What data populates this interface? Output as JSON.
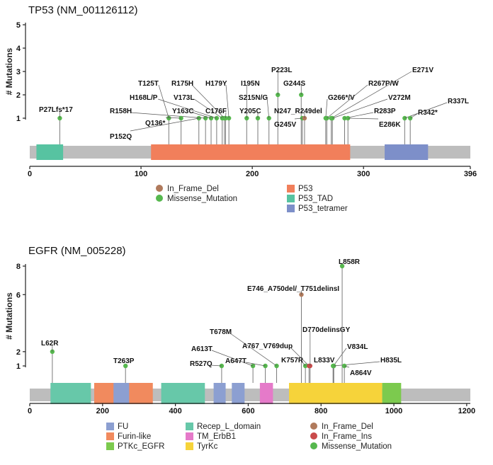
{
  "colors": {
    "backbone": "#bdbdbd",
    "stem": "#7a7a7a",
    "axis": "#222222",
    "Missense_Mutation": "#56b84e",
    "In_Frame_Del": "#b07a5c",
    "In_Frame_Ins": "#c94b4b",
    "P53": "#f17f5b",
    "P53_TAD": "#57c3a1",
    "P53_tetramer": "#7d8fc9",
    "FU": "#8c9fd1",
    "Furin-like": "#f18a5e",
    "Recep_L_domain": "#67c8a9",
    "PTKc_EGFR": "#7cca4e",
    "TM_ErbB1": "#e57ac9",
    "TyrKc": "#f6d33a"
  },
  "chart_data": [
    {
      "type": "lollipop",
      "title": "TP53 (NM_001126112)",
      "ylabel": "# Mutations",
      "protein_length": 396,
      "ylim": [
        0,
        5
      ],
      "yticks": [
        1,
        2,
        3,
        4,
        5
      ],
      "xticks": [
        0,
        100,
        200,
        300,
        396
      ],
      "domains": [
        {
          "name": "P53_TAD",
          "start": 6,
          "end": 30
        },
        {
          "name": "P53",
          "start": 109,
          "end": 288
        },
        {
          "name": "P53_tetramer",
          "start": 319,
          "end": 358
        }
      ],
      "mutations": [
        {
          "label": "P27Lfs*17",
          "pos": 27,
          "count": 1,
          "type": "Missense_Mutation"
        },
        {
          "label": "T125T",
          "pos": 125,
          "count": 1,
          "type": "Missense_Mutation"
        },
        {
          "label": "P152Q",
          "pos": 152,
          "count": 1,
          "type": "Missense_Mutation"
        },
        {
          "label": "R158H",
          "pos": 158,
          "count": 1,
          "type": "Missense_Mutation"
        },
        {
          "label": "Y163C",
          "pos": 163,
          "count": 1,
          "type": "Missense_Mutation"
        },
        {
          "label": "H168L/P",
          "pos": 168,
          "count": 1,
          "type": "Missense_Mutation"
        },
        {
          "label": "Q136*",
          "pos": 136,
          "count": 1,
          "type": "Missense_Mutation"
        },
        {
          "label": "V173L",
          "pos": 173,
          "count": 1,
          "type": "Missense_Mutation"
        },
        {
          "label": "R175H",
          "pos": 175,
          "count": 1,
          "type": "Missense_Mutation"
        },
        {
          "label": "C176F",
          "pos": 176,
          "count": 1,
          "type": "Missense_Mutation"
        },
        {
          "label": "H179Y",
          "pos": 179,
          "count": 1,
          "type": "Missense_Mutation"
        },
        {
          "label": "I195N",
          "pos": 195,
          "count": 1,
          "type": "Missense_Mutation"
        },
        {
          "label": "Y205C",
          "pos": 205,
          "count": 1,
          "type": "Missense_Mutation"
        },
        {
          "label": "S215N/G",
          "pos": 215,
          "count": 1,
          "type": "Missense_Mutation"
        },
        {
          "label": "P223L",
          "pos": 223,
          "count": 2,
          "type": "Missense_Mutation"
        },
        {
          "label": "G244S",
          "pos": 244,
          "count": 2,
          "type": "Missense_Mutation"
        },
        {
          "label": "G245V",
          "pos": 245,
          "count": 1,
          "type": "Missense_Mutation"
        },
        {
          "label": "N247_R249del",
          "pos": 247,
          "count": 1,
          "type": "In_Frame_Del"
        },
        {
          "label": "G266*/V",
          "pos": 266,
          "count": 1,
          "type": "Missense_Mutation"
        },
        {
          "label": "R267P/W",
          "pos": 267,
          "count": 1,
          "type": "Missense_Mutation"
        },
        {
          "label": "E271V",
          "pos": 271,
          "count": 1,
          "type": "Missense_Mutation"
        },
        {
          "label": "V272M",
          "pos": 272,
          "count": 1,
          "type": "Missense_Mutation"
        },
        {
          "label": "R283P",
          "pos": 283,
          "count": 1,
          "type": "Missense_Mutation"
        },
        {
          "label": "E286K",
          "pos": 286,
          "count": 1,
          "type": "Missense_Mutation"
        },
        {
          "label": "R337L",
          "pos": 337,
          "count": 1,
          "type": "Missense_Mutation"
        },
        {
          "label": "R342*",
          "pos": 342,
          "count": 1,
          "type": "Missense_Mutation"
        }
      ],
      "legend": [
        "In_Frame_Del",
        "Missense_Mutation",
        "P53",
        "P53_TAD",
        "P53_tetramer"
      ]
    },
    {
      "type": "lollipop",
      "title": "EGFR (NM_005228)",
      "ylabel": "# Mutations",
      "protein_length": 1210,
      "ylim": [
        0,
        8
      ],
      "yticks": [
        1,
        2,
        6,
        8
      ],
      "xticks": [
        0,
        200,
        400,
        600,
        800,
        1000,
        1200
      ],
      "domains": [
        {
          "name": "Recep_L_domain",
          "start": 57,
          "end": 168
        },
        {
          "name": "Furin-like",
          "start": 177,
          "end": 338
        },
        {
          "name": "FU",
          "start": 230,
          "end": 273
        },
        {
          "name": "Recep_L_domain",
          "start": 361,
          "end": 481
        },
        {
          "name": "FU",
          "start": 505,
          "end": 538
        },
        {
          "name": "FU",
          "start": 555,
          "end": 590
        },
        {
          "name": "TM_ErbB1",
          "start": 632,
          "end": 668
        },
        {
          "name": "TyrKc",
          "start": 712,
          "end": 968
        },
        {
          "name": "PTKc_EGFR",
          "start": 968,
          "end": 1020
        }
      ],
      "mutations": [
        {
          "label": "L62R",
          "pos": 62,
          "count": 2,
          "type": "Missense_Mutation"
        },
        {
          "label": "T263P",
          "pos": 263,
          "count": 1,
          "type": "Missense_Mutation"
        },
        {
          "label": "R527Q",
          "pos": 527,
          "count": 1,
          "type": "Missense_Mutation"
        },
        {
          "label": "A613T",
          "pos": 613,
          "count": 1,
          "type": "Missense_Mutation"
        },
        {
          "label": "A647T",
          "pos": 647,
          "count": 1,
          "type": "Missense_Mutation"
        },
        {
          "label": "T678M",
          "pos": 678,
          "count": 1,
          "type": "Missense_Mutation"
        },
        {
          "label": "E746_A750del/_T751delinsI",
          "pos": 746,
          "count": 6,
          "type": "In_Frame_Del"
        },
        {
          "label": "K757R",
          "pos": 757,
          "count": 1,
          "type": "Missense_Mutation"
        },
        {
          "label": "A767_V769dup",
          "pos": 767,
          "count": 1,
          "type": "In_Frame_Ins"
        },
        {
          "label": "D770delinsGY",
          "pos": 770,
          "count": 1,
          "type": "In_Frame_Ins"
        },
        {
          "label": "L833V",
          "pos": 833,
          "count": 1,
          "type": "Missense_Mutation"
        },
        {
          "label": "V834L",
          "pos": 834,
          "count": 1,
          "type": "Missense_Mutation"
        },
        {
          "label": "H835L",
          "pos": 835,
          "count": 1,
          "type": "Missense_Mutation"
        },
        {
          "label": "L858R",
          "pos": 858,
          "count": 8,
          "type": "Missense_Mutation"
        },
        {
          "label": "A864V",
          "pos": 864,
          "count": 1,
          "type": "Missense_Mutation"
        }
      ],
      "legend": [
        "FU",
        "Furin-like",
        "PTKc_EGFR",
        "Recep_L_domain",
        "TM_ErbB1",
        "TyrKc",
        "In_Frame_Del",
        "In_Frame_Ins",
        "Missense_Mutation"
      ]
    }
  ]
}
